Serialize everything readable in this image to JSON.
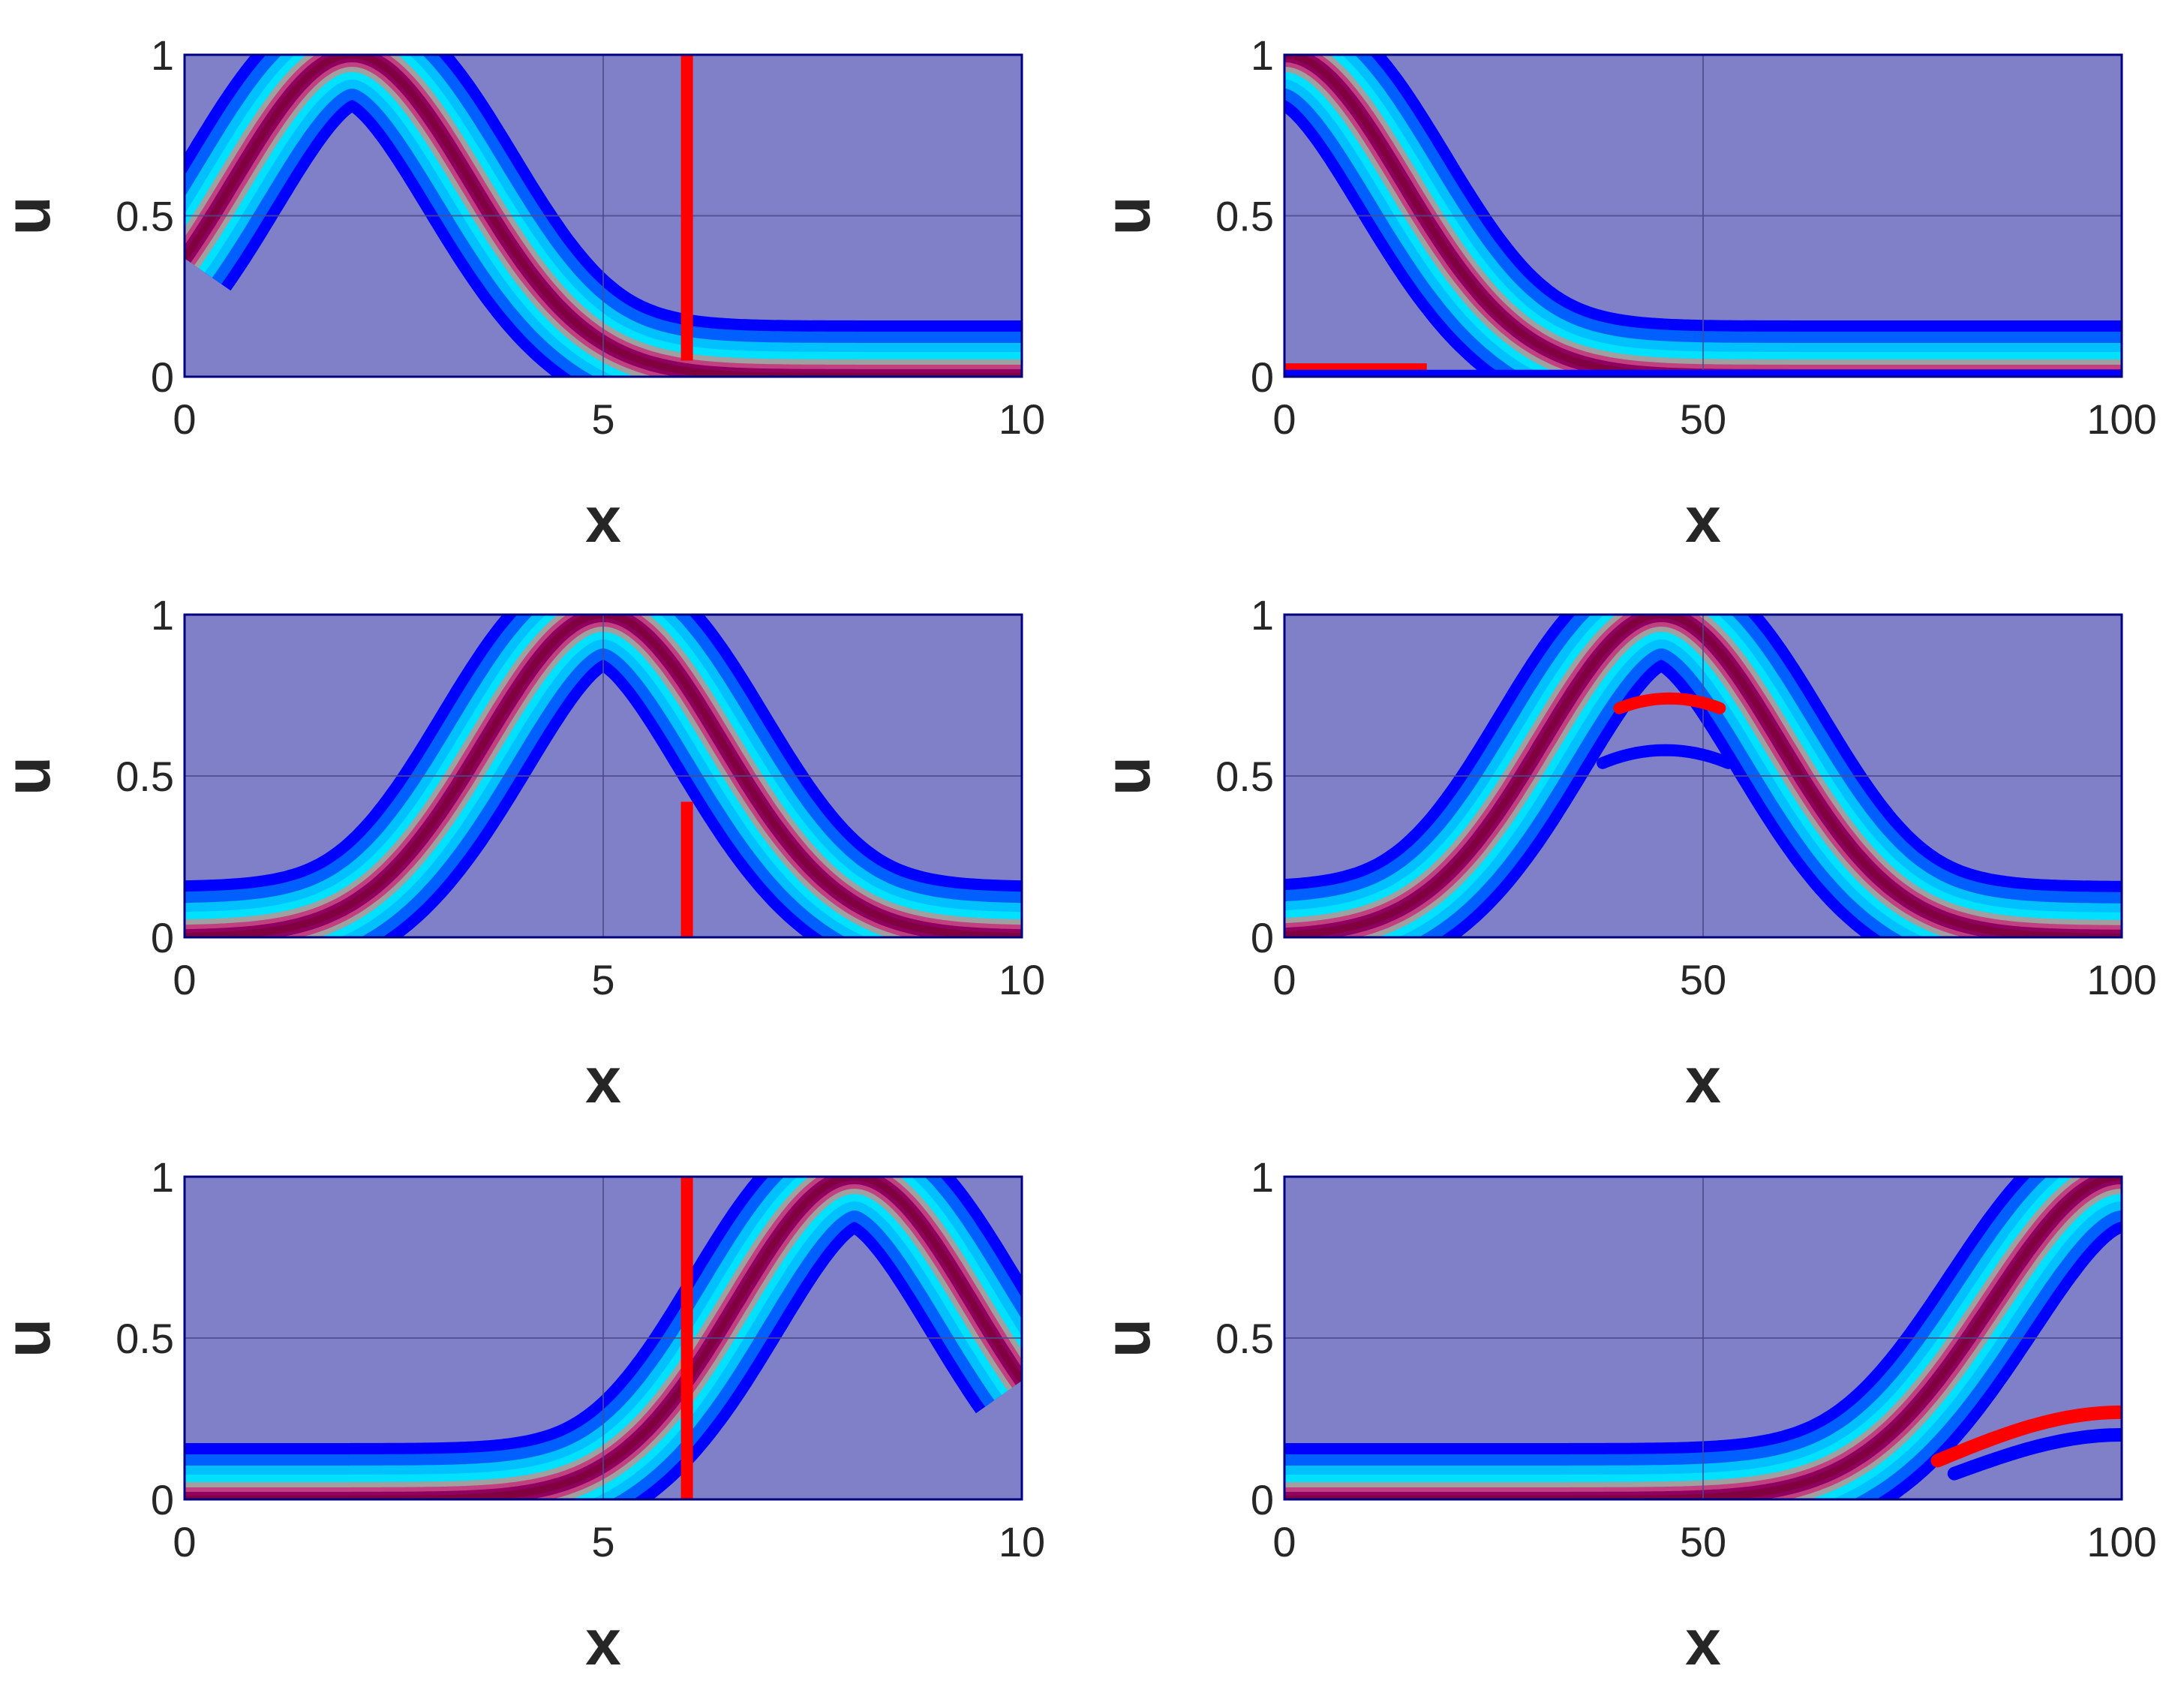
{
  "figure": {
    "background_color": "#ffffff",
    "axes_background_color": "#8080c8",
    "axes_edge_color": "#000080",
    "grid_color": "#4a4a8a",
    "colormap": [
      "#0000ff",
      "#0060ff",
      "#00c0ff",
      "#00e0ff",
      "#a0a0a0",
      "#c04080",
      "#900060",
      "#800040"
    ],
    "note": ""
  },
  "chart_data": [
    {
      "type": "area",
      "xlabel": "x",
      "ylabel": "u",
      "xlim": [
        0,
        10
      ],
      "ylim": [
        0,
        1
      ],
      "xticks": [
        "0",
        "5",
        "10"
      ],
      "yticks": [
        "0",
        "0.5",
        "1"
      ],
      "grid": true,
      "band": {
        "center": 2.0,
        "width": 2.0,
        "spread": 0.35
      },
      "overlays": [
        {
          "kind": "vertical",
          "color": "#ff0000",
          "x": 6,
          "y": [
            0.05,
            1.0
          ]
        }
      ]
    },
    {
      "type": "area",
      "xlabel": "x",
      "ylabel": "u",
      "xlim": [
        0,
        100
      ],
      "ylim": [
        0,
        1
      ],
      "xticks": [
        "0",
        "50",
        "100"
      ],
      "yticks": [
        "0",
        "0.5",
        "1"
      ],
      "grid": true,
      "band": {
        "center": 0.0,
        "width": 20.0,
        "spread": 6.0
      },
      "overlays": [
        {
          "kind": "horizontal",
          "color": "#ff0000",
          "x": [
            0,
            17
          ],
          "y": 0.03
        },
        {
          "kind": "horizontal",
          "color": "#0000ff",
          "x": [
            0,
            100
          ],
          "y": 0.01
        }
      ]
    },
    {
      "type": "area",
      "xlabel": "x",
      "ylabel": "u",
      "xlim": [
        0,
        10
      ],
      "ylim": [
        0,
        1
      ],
      "xticks": [
        "0",
        "5",
        "10"
      ],
      "yticks": [
        "0",
        "0.5",
        "1"
      ],
      "grid": true,
      "band": {
        "center": 5.0,
        "width": 2.0,
        "spread": 0.45
      },
      "overlays": [
        {
          "kind": "vertical",
          "color": "#ff0000",
          "x": 6,
          "y": [
            0.0,
            0.42
          ]
        }
      ]
    },
    {
      "type": "area",
      "xlabel": "x",
      "ylabel": "u",
      "xlim": [
        0,
        100
      ],
      "ylim": [
        0,
        1
      ],
      "xticks": [
        "0",
        "50",
        "100"
      ],
      "yticks": [
        "0",
        "0.5",
        "1"
      ],
      "grid": true,
      "band": {
        "center": 45.0,
        "width": 20.0,
        "spread": 6.0
      },
      "overlays": [
        {
          "kind": "arc",
          "color": "#ff0000",
          "x": [
            40,
            52
          ],
          "peak": 0.74,
          "edge": 0.71
        },
        {
          "kind": "arc",
          "color": "#0000ff",
          "x": [
            38,
            53
          ],
          "peak": 0.58,
          "edge": 0.54
        }
      ]
    },
    {
      "type": "area",
      "xlabel": "x",
      "ylabel": "u",
      "xlim": [
        0,
        10
      ],
      "ylim": [
        0,
        1
      ],
      "xticks": [
        "0",
        "5",
        "10"
      ],
      "yticks": [
        "0",
        "0.5",
        "1"
      ],
      "grid": true,
      "band": {
        "center": 8.0,
        "width": 2.0,
        "spread": 0.35
      },
      "overlays": [
        {
          "kind": "vertical",
          "color": "#ff0000",
          "x": 6,
          "y": [
            0.0,
            1.0
          ]
        }
      ]
    },
    {
      "type": "area",
      "xlabel": "x",
      "ylabel": "u",
      "xlim": [
        0,
        100
      ],
      "ylim": [
        0,
        1
      ],
      "xticks": [
        "0",
        "50",
        "100"
      ],
      "yticks": [
        "0",
        "0.5",
        "1"
      ],
      "grid": true,
      "band": {
        "center": 100.0,
        "width": 22.0,
        "spread": 7.0
      },
      "overlays": [
        {
          "kind": "rise",
          "color": "#ff0000",
          "x": [
            78,
            100
          ],
          "from": 0.12,
          "to": 0.27
        },
        {
          "kind": "rise",
          "color": "#0000ff",
          "x": [
            80,
            100
          ],
          "from": 0.08,
          "to": 0.2
        }
      ]
    }
  ]
}
